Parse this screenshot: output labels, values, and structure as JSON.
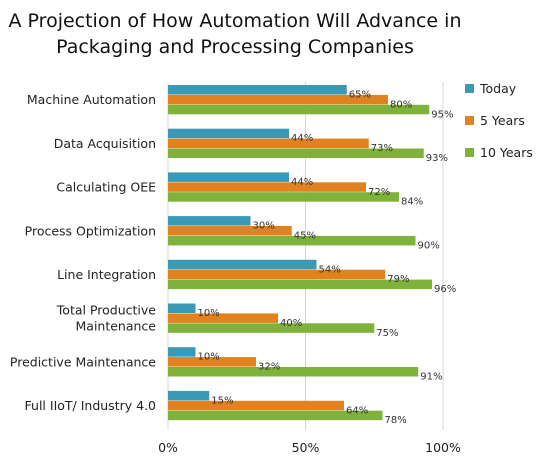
{
  "chart_data": {
    "type": "bar",
    "orientation": "horizontal",
    "title": [
      "A Projection of How Automation Will Advance in",
      "Packaging and Processing Companies"
    ],
    "categories": [
      [
        "Machine Automation"
      ],
      [
        "Data Acquisition"
      ],
      [
        "Calculating OEE"
      ],
      [
        "Process Optimization"
      ],
      [
        "Line Integration"
      ],
      [
        "Total Productive",
        "Maintenance"
      ],
      [
        "Predictive Maintenance"
      ],
      [
        "Full IIoT/ Industry 4.0"
      ]
    ],
    "series": [
      {
        "name": "Today",
        "color": "#3a9ab5",
        "values": [
          65,
          44,
          44,
          30,
          54,
          10,
          10,
          15
        ]
      },
      {
        "name": "5 Years",
        "color": "#e2821f",
        "values": [
          80,
          73,
          72,
          45,
          79,
          40,
          32,
          64
        ]
      },
      {
        "name": "10 Years",
        "color": "#7fb23a",
        "values": [
          95,
          93,
          84,
          90,
          96,
          75,
          91,
          78
        ]
      }
    ],
    "value_suffix": "%",
    "xlim": [
      0,
      100
    ],
    "xticks": [
      "0%",
      "50%",
      "100%"
    ],
    "grid": true,
    "legend_position": "right"
  }
}
